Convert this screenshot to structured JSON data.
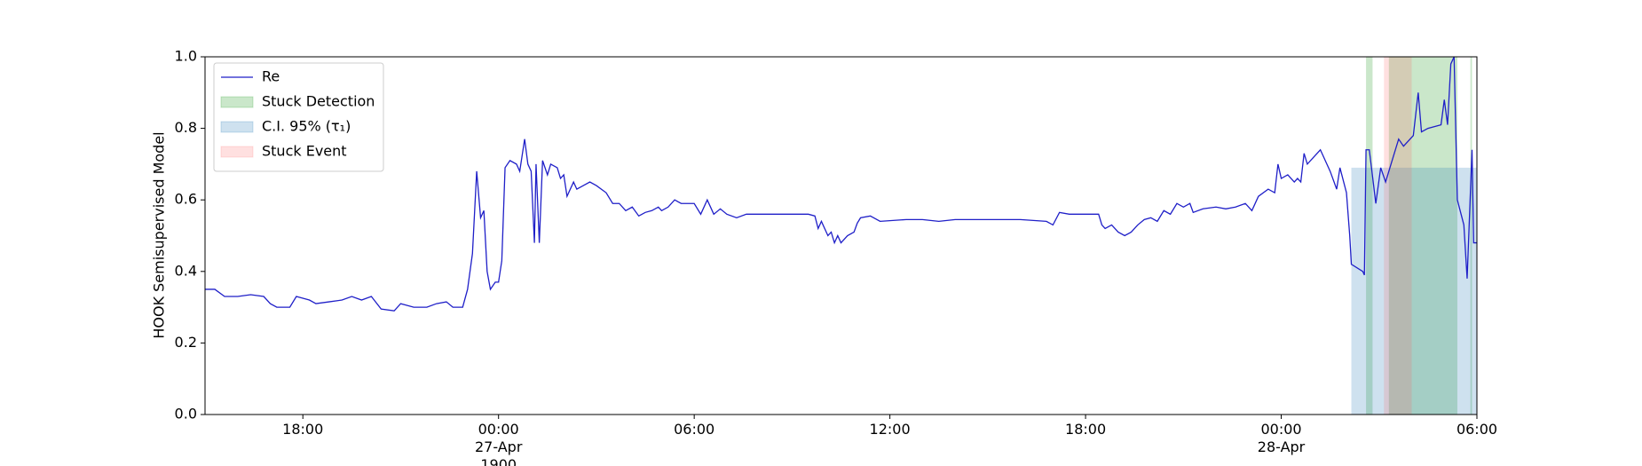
{
  "chart_data": {
    "type": "line",
    "ylabel": "HOOK Semisupervised Model",
    "xlim": [
      -9,
      30
    ],
    "xticks": [
      {
        "value": -6,
        "label": "18:00"
      },
      {
        "value": 0,
        "label": "00:00\n27-Apr\n1900"
      },
      {
        "value": 6,
        "label": "06:00"
      },
      {
        "value": 12,
        "label": "12:00"
      },
      {
        "value": 18,
        "label": "18:00"
      },
      {
        "value": 24,
        "label": "00:00\n28-Apr"
      },
      {
        "value": 30,
        "label": "06:00"
      }
    ],
    "ylim": [
      0,
      1
    ],
    "yticks": [
      {
        "value": 0,
        "label": "0.0"
      },
      {
        "value": 0.2,
        "label": "0.2"
      },
      {
        "value": 0.4,
        "label": "0.4"
      },
      {
        "value": 0.6,
        "label": "0.6"
      },
      {
        "value": 0.8,
        "label": "0.8"
      },
      {
        "value": 1,
        "label": "1.0"
      }
    ],
    "legend": "upper left",
    "series": [
      {
        "name": "Re",
        "type": "line",
        "color": "#1f1fc8",
        "x": [
          -9,
          -8.7,
          -8.4,
          -8.0,
          -7.6,
          -7.2,
          -7.0,
          -6.8,
          -6.4,
          -6.2,
          -5.8,
          -5.6,
          -5.2,
          -4.8,
          -4.5,
          -4.2,
          -3.9,
          -3.6,
          -3.2,
          -3.0,
          -2.6,
          -2.2,
          -1.9,
          -1.6,
          -1.4,
          -1.1,
          -0.95,
          -0.8,
          -0.67,
          -0.55,
          -0.45,
          -0.35,
          -0.25,
          -0.1,
          0.0,
          0.1,
          0.2,
          0.35,
          0.55,
          0.65,
          0.8,
          0.9,
          1.0,
          1.1,
          1.15,
          1.25,
          1.35,
          1.5,
          1.6,
          1.8,
          1.9,
          2.0,
          2.1,
          2.3,
          2.4,
          2.6,
          2.8,
          3.0,
          3.3,
          3.5,
          3.7,
          3.9,
          4.1,
          4.3,
          4.5,
          4.7,
          4.9,
          5.0,
          5.2,
          5.4,
          5.6,
          5.8,
          6.0,
          6.2,
          6.4,
          6.6,
          6.8,
          7.0,
          7.3,
          7.6,
          8.5,
          9.0,
          9.5,
          9.7,
          9.8,
          9.9,
          10.1,
          10.2,
          10.3,
          10.4,
          10.5,
          10.7,
          10.9,
          11.0,
          11.1,
          11.4,
          11.7,
          12.5,
          13.0,
          13.5,
          14.0,
          15.0,
          15.5,
          16.0,
          16.8,
          17.0,
          17.2,
          17.5,
          18.0,
          18.4,
          18.5,
          18.6,
          18.8,
          19.0,
          19.2,
          19.4,
          19.6,
          19.8,
          20.0,
          20.2,
          20.4,
          20.6,
          20.8,
          21.0,
          21.2,
          21.3,
          21.6,
          22.0,
          22.3,
          22.6,
          22.9,
          23.1,
          23.3,
          23.6,
          23.8,
          23.9,
          24.0,
          24.2,
          24.4,
          24.5,
          24.6,
          24.7,
          24.8,
          25.0,
          25.2,
          25.5,
          25.7,
          25.8,
          26.0,
          26.1,
          26.15,
          26.5,
          26.55,
          26.6,
          26.7,
          26.9,
          27.05,
          27.2,
          27.4,
          27.6,
          27.75,
          28.05,
          28.2,
          28.3,
          28.5,
          28.9,
          29.0,
          29.1,
          29.2,
          29.3,
          29.4,
          29.6,
          29.7,
          29.85,
          29.9,
          30
        ],
        "values": [
          0.35,
          0.35,
          0.33,
          0.33,
          0.335,
          0.33,
          0.31,
          0.3,
          0.3,
          0.33,
          0.32,
          0.31,
          0.315,
          0.32,
          0.33,
          0.32,
          0.33,
          0.295,
          0.29,
          0.31,
          0.3,
          0.3,
          0.31,
          0.315,
          0.3,
          0.3,
          0.35,
          0.45,
          0.68,
          0.55,
          0.57,
          0.4,
          0.35,
          0.37,
          0.37,
          0.43,
          0.69,
          0.71,
          0.7,
          0.68,
          0.77,
          0.7,
          0.68,
          0.48,
          0.7,
          0.48,
          0.71,
          0.67,
          0.7,
          0.69,
          0.66,
          0.67,
          0.61,
          0.65,
          0.63,
          0.64,
          0.65,
          0.64,
          0.62,
          0.59,
          0.59,
          0.57,
          0.58,
          0.555,
          0.565,
          0.57,
          0.58,
          0.57,
          0.58,
          0.6,
          0.59,
          0.59,
          0.59,
          0.56,
          0.6,
          0.56,
          0.575,
          0.56,
          0.55,
          0.56,
          0.56,
          0.56,
          0.56,
          0.555,
          0.52,
          0.54,
          0.5,
          0.51,
          0.48,
          0.5,
          0.48,
          0.5,
          0.51,
          0.535,
          0.55,
          0.555,
          0.54,
          0.545,
          0.545,
          0.54,
          0.545,
          0.545,
          0.545,
          0.545,
          0.54,
          0.53,
          0.565,
          0.56,
          0.56,
          0.56,
          0.53,
          0.52,
          0.53,
          0.51,
          0.5,
          0.51,
          0.53,
          0.545,
          0.55,
          0.54,
          0.57,
          0.56,
          0.59,
          0.58,
          0.59,
          0.565,
          0.575,
          0.58,
          0.575,
          0.58,
          0.59,
          0.57,
          0.61,
          0.63,
          0.62,
          0.7,
          0.66,
          0.67,
          0.65,
          0.66,
          0.65,
          0.73,
          0.7,
          0.72,
          0.74,
          0.68,
          0.63,
          0.69,
          0.62,
          0.5,
          0.42,
          0.4,
          0.39,
          0.74,
          0.74,
          0.59,
          0.69,
          0.65,
          0.71,
          0.77,
          0.75,
          0.78,
          0.9,
          0.79,
          0.8,
          0.81,
          0.88,
          0.81,
          0.98,
          1.0,
          0.6,
          0.53,
          0.38,
          0.74,
          0.48,
          0.48
        ]
      },
      {
        "name": "Stuck Detection",
        "type": "span",
        "color": "#2ca02c",
        "alpha": 0.25,
        "spans": [
          [
            26.6,
            26.8
          ],
          [
            27.3,
            29.4
          ],
          [
            29.8,
            29.85
          ]
        ]
      },
      {
        "name": "C.I. 95% (τ₁)",
        "type": "span",
        "color": "#1f77b4",
        "alpha": 0.22,
        "spans": [
          [
            26.15,
            30
          ]
        ],
        "ymax": 0.69
      },
      {
        "name": "Stuck Event",
        "type": "span",
        "color": "#ff6666",
        "alpha": 0.2,
        "spans": [
          [
            27.15,
            28.0
          ]
        ]
      }
    ]
  }
}
